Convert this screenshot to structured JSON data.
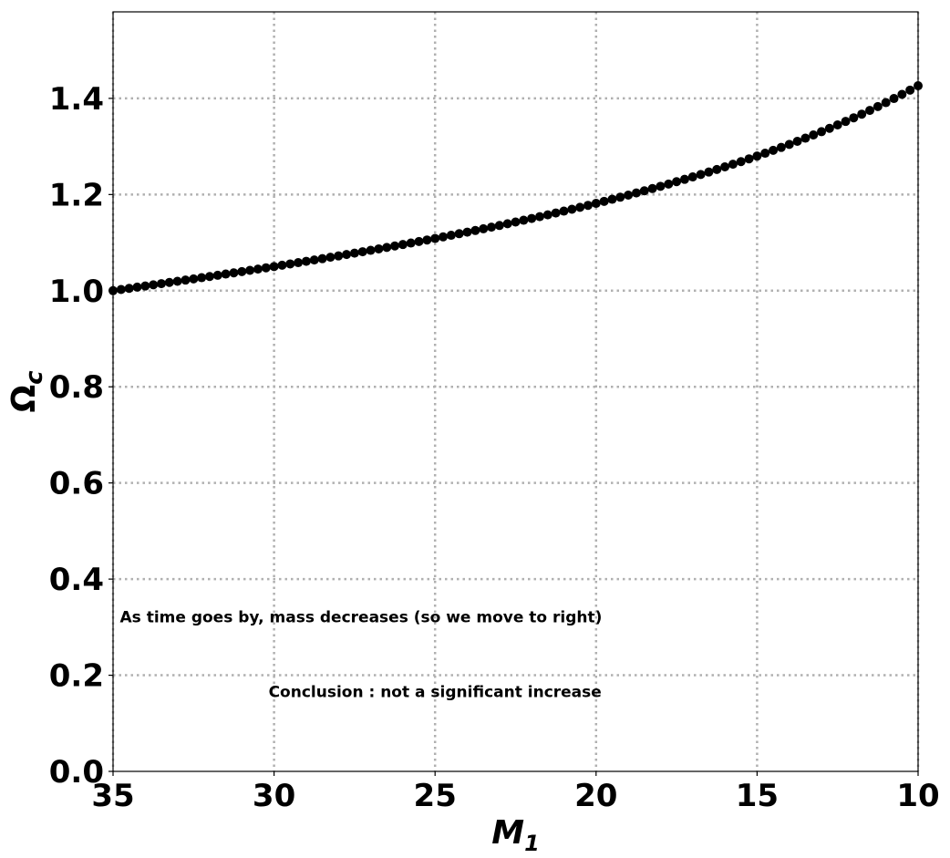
{
  "chart_data": {
    "type": "scatter",
    "title": "",
    "xlabel": "M",
    "xlabel_sub": "1",
    "ylabel": "Ω",
    "ylabel_sub": "c",
    "xlim": [
      35,
      10
    ],
    "ylim": [
      0,
      1.58
    ],
    "x_inverted": true,
    "grid": true,
    "legend": "none",
    "marker_color": "#000000",
    "grid_color": "#b0b0b0",
    "x_ticks": [
      {
        "value": 35,
        "label": "35"
      },
      {
        "value": 30,
        "label": "30"
      },
      {
        "value": 25,
        "label": "25"
      },
      {
        "value": 20,
        "label": "20"
      },
      {
        "value": 15,
        "label": "15"
      },
      {
        "value": 10,
        "label": "10"
      }
    ],
    "y_ticks": [
      {
        "value": 0.0,
        "label": "0.0"
      },
      {
        "value": 0.2,
        "label": "0.2"
      },
      {
        "value": 0.4,
        "label": "0.4"
      },
      {
        "value": 0.6,
        "label": "0.6"
      },
      {
        "value": 0.8,
        "label": "0.8"
      },
      {
        "value": 1.0,
        "label": "1.0"
      },
      {
        "value": 1.2,
        "label": "1.2"
      },
      {
        "value": 1.4,
        "label": "1.4"
      }
    ],
    "series": [
      {
        "x": [
          35.0,
          34.75,
          34.5,
          34.25,
          34.0,
          33.75,
          33.5,
          33.25,
          33.0,
          32.75,
          32.5,
          32.25,
          32.0,
          31.75,
          31.5,
          31.25,
          31.0,
          30.75,
          30.5,
          30.25,
          30.0,
          29.75,
          29.5,
          29.25,
          29.0,
          28.75,
          28.5,
          28.25,
          28.0,
          27.75,
          27.5,
          27.25,
          27.0,
          26.75,
          26.5,
          26.25,
          26.0,
          25.75,
          25.5,
          25.25,
          25.0,
          24.75,
          24.5,
          24.25,
          24.0,
          23.75,
          23.5,
          23.25,
          23.0,
          22.75,
          22.5,
          22.25,
          22.0,
          21.75,
          21.5,
          21.25,
          21.0,
          20.75,
          20.5,
          20.25,
          20.0,
          19.75,
          19.5,
          19.25,
          19.0,
          18.75,
          18.5,
          18.25,
          18.0,
          17.75,
          17.5,
          17.25,
          17.0,
          16.75,
          16.5,
          16.25,
          16.0,
          15.75,
          15.5,
          15.25,
          15.0,
          14.75,
          14.5,
          14.25,
          14.0,
          13.75,
          13.5,
          13.25,
          13.0,
          12.75,
          12.5,
          12.25,
          12.0,
          11.75,
          11.5,
          11.25,
          11.0,
          10.75,
          10.5,
          10.25,
          10.0
        ],
        "y": [
          1.0,
          1.0024,
          1.0048,
          1.0073,
          1.0097,
          1.0122,
          1.0146,
          1.0171,
          1.0195,
          1.022,
          1.0245,
          1.027,
          1.0295,
          1.032,
          1.0346,
          1.0371,
          1.0397,
          1.0423,
          1.0449,
          1.0476,
          1.0502,
          1.0529,
          1.0556,
          1.0583,
          1.0611,
          1.0638,
          1.0666,
          1.0695,
          1.0723,
          1.0752,
          1.0781,
          1.081,
          1.0839,
          1.0869,
          1.0899,
          1.093,
          1.096,
          1.0991,
          1.1023,
          1.1054,
          1.1086,
          1.1119,
          1.1152,
          1.1185,
          1.1218,
          1.1252,
          1.1287,
          1.1321,
          1.1356,
          1.1392,
          1.1428,
          1.1465,
          1.1502,
          1.1539,
          1.1577,
          1.1616,
          1.1655,
          1.1694,
          1.1734,
          1.1775,
          1.1816,
          1.1858,
          1.1901,
          1.1944,
          1.1988,
          1.2033,
          1.2078,
          1.2124,
          1.2171,
          1.2218,
          1.2267,
          1.2316,
          1.2366,
          1.2417,
          1.2468,
          1.2521,
          1.2575,
          1.263,
          1.2685,
          1.2742,
          1.28,
          1.2859,
          1.2919,
          1.298,
          1.3043,
          1.3107,
          1.3172,
          1.3239,
          1.3307,
          1.3377,
          1.3448,
          1.3521,
          1.3596,
          1.3672,
          1.375,
          1.383,
          1.3912,
          1.3997,
          1.4083,
          1.4172,
          1.4263
        ]
      }
    ],
    "annotations": [
      {
        "text": "As time goes by, mass decreases (so we move to right)",
        "x": 27.3,
        "y": 0.31
      },
      {
        "text": "Conclusion : not a significant increase",
        "x": 25.0,
        "y": 0.155
      }
    ]
  }
}
